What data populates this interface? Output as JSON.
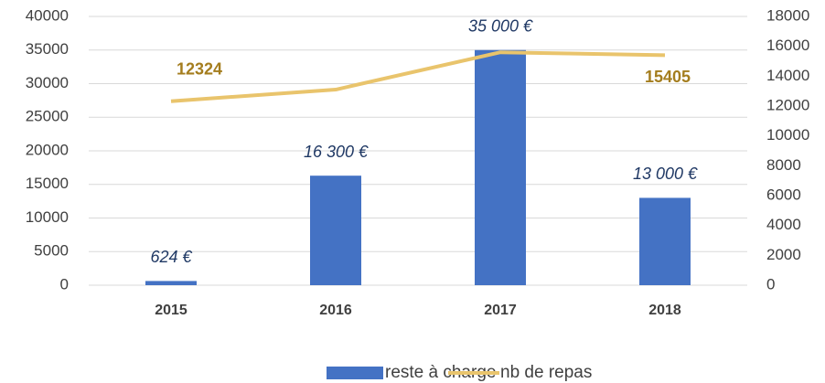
{
  "chart_data": {
    "type": "bar",
    "categories": [
      "2015",
      "2016",
      "2017",
      "2018"
    ],
    "series": [
      {
        "name": "reste à charge",
        "type": "bar",
        "color": "#4472c4",
        "values": [
          624,
          16300,
          35000,
          13000
        ],
        "value_labels": [
          "624 €",
          "16 300 €",
          "35 000 €",
          "13 000 €"
        ]
      },
      {
        "name": "nb de repas",
        "type": "line",
        "axis": "y2",
        "color": "#e9c46c",
        "values": [
          12324,
          13100,
          15600,
          15405
        ],
        "value_labels": [
          "12324",
          null,
          null,
          "15405"
        ]
      }
    ],
    "ylim": [
      0,
      40000
    ],
    "yticks": [
      0,
      5000,
      10000,
      15000,
      20000,
      25000,
      30000,
      35000,
      40000
    ],
    "y2lim": [
      0,
      18000
    ],
    "y2ticks": [
      0,
      2000,
      4000,
      6000,
      8000,
      10000,
      12000,
      14000,
      16000,
      18000
    ],
    "grid": true,
    "legend": "bottom"
  }
}
